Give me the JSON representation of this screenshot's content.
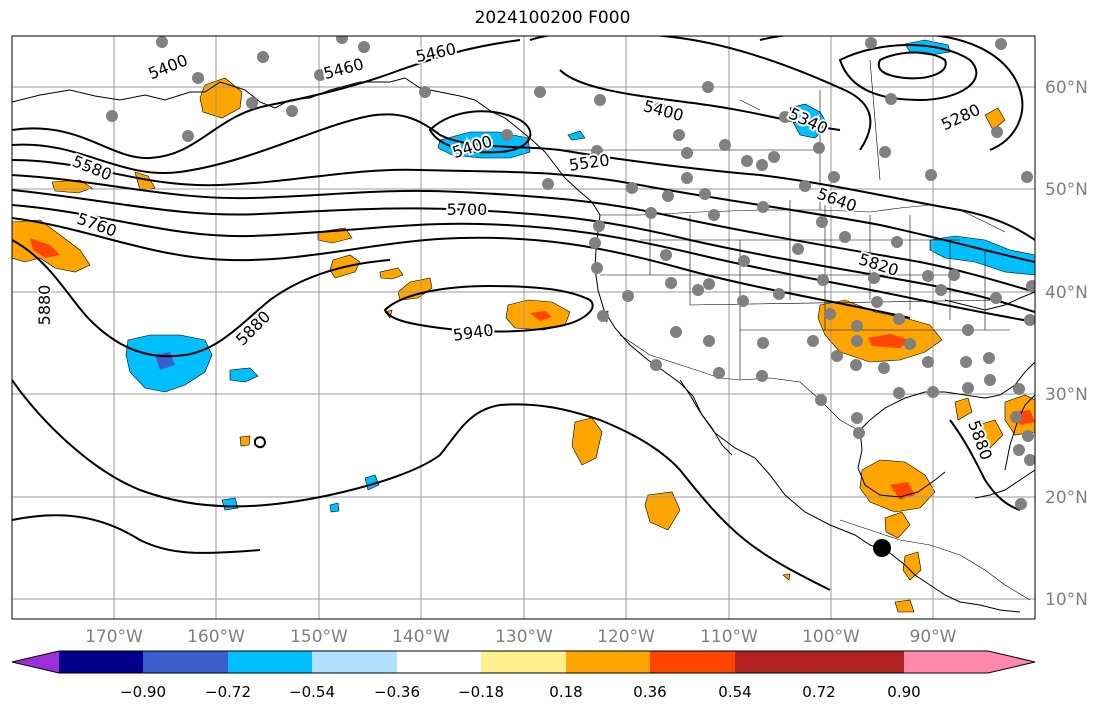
{
  "title": "2024100200 F000",
  "lat_labels": [
    "60°N",
    "50°N",
    "40°N",
    "30°N",
    "20°N",
    "10°N"
  ],
  "lon_labels": [
    "170°W",
    "160°W",
    "150°W",
    "140°W",
    "130°W",
    "120°W",
    "110°W",
    "100°W",
    "90°W"
  ],
  "contour_labels": [
    "5400",
    "5460",
    "5460",
    "5400",
    "5280",
    "5340",
    "5400",
    "5520",
    "5580",
    "5640",
    "5700",
    "5760",
    "5820",
    "5880",
    "5880",
    "5940",
    "5880"
  ],
  "colorbar": {
    "colors": [
      "#9b30d9",
      "#00008b",
      "#3a5fcd",
      "#00bfff",
      "#b0e2ff",
      "#ffffff",
      "#fff08c",
      "#ffa500",
      "#ff4500",
      "#b22222",
      "#ff88aa"
    ],
    "ticks": [
      "−0.90",
      "−0.72",
      "−0.54",
      "−0.36",
      "−0.18",
      "0.18",
      "0.36",
      "0.54",
      "0.72",
      "0.90"
    ]
  }
}
